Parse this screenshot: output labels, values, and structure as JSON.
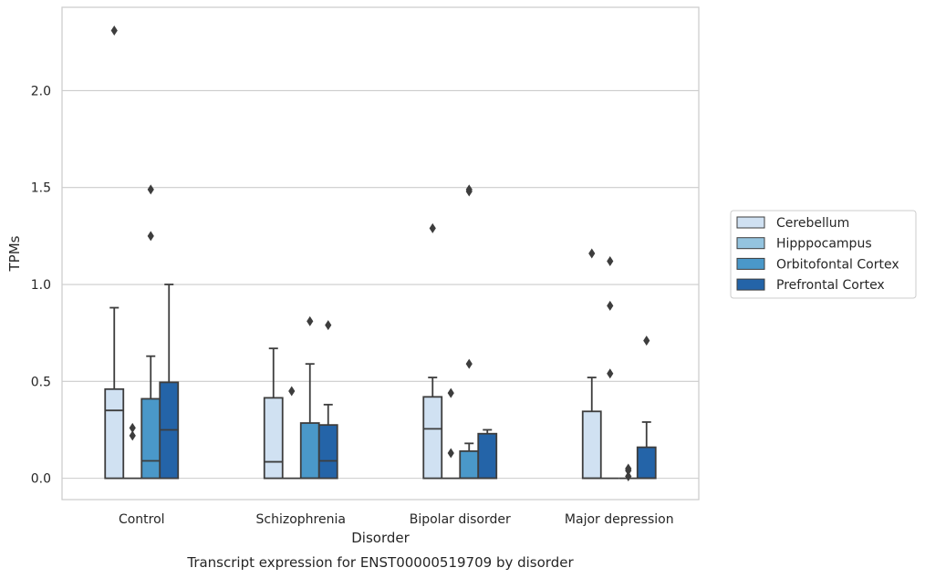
{
  "chart_data": {
    "type": "box",
    "title": "Transcript expression for ENST00000519709 by disorder",
    "xlabel": "Disorder",
    "ylabel": "TPMs",
    "categories": [
      "Control",
      "Schizophrenia",
      "Bipolar disorder",
      "Major depression"
    ],
    "yticks": [
      "0.0",
      "0.5",
      "1.0",
      "1.5",
      "2.0"
    ],
    "ylim": [
      -0.11,
      2.43
    ],
    "grid": true,
    "legend_position": "right",
    "series": [
      {
        "name": "Cerebellum",
        "color": "#d0e1f2",
        "boxes": [
          {
            "q1": 0,
            "median": 0.35,
            "q3": 0.46,
            "whisker_low": 0,
            "whisker_high": 0.88,
            "outliers": [
              2.31
            ]
          },
          {
            "q1": 0,
            "median": 0.085,
            "q3": 0.415,
            "whisker_low": 0,
            "whisker_high": 0.67,
            "outliers": []
          },
          {
            "q1": 0,
            "median": 0.255,
            "q3": 0.42,
            "whisker_low": 0,
            "whisker_high": 0.52,
            "outliers": [
              1.29
            ]
          },
          {
            "q1": 0,
            "median": 0,
            "q3": 0.345,
            "whisker_low": 0,
            "whisker_high": 0.52,
            "outliers": [
              1.16
            ]
          }
        ]
      },
      {
        "name": "Hipppocampus",
        "color": "#94c4df",
        "boxes": [
          {
            "q1": 0,
            "median": 0,
            "q3": 0,
            "whisker_low": 0,
            "whisker_high": 0,
            "outliers": [
              0.22,
              0.26
            ]
          },
          {
            "q1": 0,
            "median": 0,
            "q3": 0,
            "whisker_low": 0,
            "whisker_high": 0,
            "outliers": [
              0.45
            ]
          },
          {
            "q1": 0,
            "median": 0,
            "q3": 0,
            "whisker_low": 0,
            "whisker_high": 0,
            "outliers": [
              0.13,
              0.44
            ]
          },
          {
            "q1": 0,
            "median": 0,
            "q3": 0,
            "whisker_low": 0,
            "whisker_high": 0,
            "outliers": [
              0.54,
              0.89,
              1.12
            ]
          }
        ]
      },
      {
        "name": "Orbitofontal Cortex",
        "color": "#4a98c9",
        "boxes": [
          {
            "q1": 0,
            "median": 0.09,
            "q3": 0.41,
            "whisker_low": 0,
            "whisker_high": 0.63,
            "outliers": [
              1.25,
              1.49
            ]
          },
          {
            "q1": 0,
            "median": 0,
            "q3": 0.285,
            "whisker_low": 0,
            "whisker_high": 0.59,
            "outliers": [
              0.81
            ]
          },
          {
            "q1": 0,
            "median": 0,
            "q3": 0.14,
            "whisker_low": 0,
            "whisker_high": 0.18,
            "outliers": [
              0.59,
              1.48,
              1.49
            ]
          },
          {
            "q1": 0,
            "median": 0,
            "q3": 0,
            "whisker_low": 0,
            "whisker_high": 0,
            "outliers": [
              0.01,
              0.04,
              0.05
            ]
          }
        ]
      },
      {
        "name": "Prefrontal Cortex",
        "color": "#2464a8",
        "boxes": [
          {
            "q1": 0,
            "median": 0.25,
            "q3": 0.495,
            "whisker_low": 0,
            "whisker_high": 1.0,
            "outliers": []
          },
          {
            "q1": 0,
            "median": 0.09,
            "q3": 0.275,
            "whisker_low": 0,
            "whisker_high": 0.38,
            "outliers": [
              0.79
            ]
          },
          {
            "q1": 0,
            "median": 0,
            "q3": 0.23,
            "whisker_low": 0,
            "whisker_high": 0.25,
            "outliers": []
          },
          {
            "q1": 0,
            "median": 0,
            "q3": 0.16,
            "whisker_low": 0,
            "whisker_high": 0.29,
            "outliers": [
              0.71
            ]
          }
        ]
      }
    ]
  }
}
